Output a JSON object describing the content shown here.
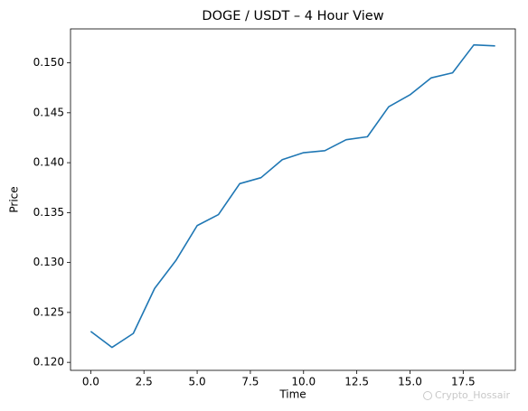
{
  "chart_data": {
    "type": "line",
    "title": "DOGE / USDT – 4 Hour View",
    "x_label": "Time",
    "y_label": "Price",
    "watermark": "Crypto_Hossair",
    "x": [
      0,
      1,
      2,
      3,
      4,
      5,
      6,
      7,
      8,
      9,
      10,
      11,
      12,
      13,
      14,
      15,
      16,
      17,
      18,
      19
    ],
    "series": [
      {
        "color": "#1f77b4",
        "values": [
          0.1231,
          0.1215,
          0.1229,
          0.1274,
          0.1302,
          0.1337,
          0.1348,
          0.1379,
          0.1385,
          0.1403,
          0.141,
          0.1412,
          0.1423,
          0.1426,
          0.1456,
          0.1468,
          0.1485,
          0.149,
          0.1518,
          0.1517
        ]
      }
    ],
    "xlim": [
      -0.95,
      19.95
    ],
    "xticks": [
      {
        "value": 0,
        "label": "0.0"
      },
      2.5,
      {
        "value": 5,
        "label": "5.0"
      },
      7.5,
      {
        "value": 10,
        "label": "10.0"
      },
      12.5,
      {
        "value": 15,
        "label": "15.0"
      },
      17.5
    ],
    "ylim": [
      0.1192,
      0.1534
    ],
    "yticks": [
      {
        "value": 0.12,
        "label": "0.120"
      },
      0.125,
      {
        "value": 0.13,
        "label": "0.130"
      },
      0.135,
      {
        "value": 0.14,
        "label": "0.140"
      },
      0.145,
      {
        "value": 0.15,
        "label": "0.150"
      }
    ],
    "grid": false
  }
}
